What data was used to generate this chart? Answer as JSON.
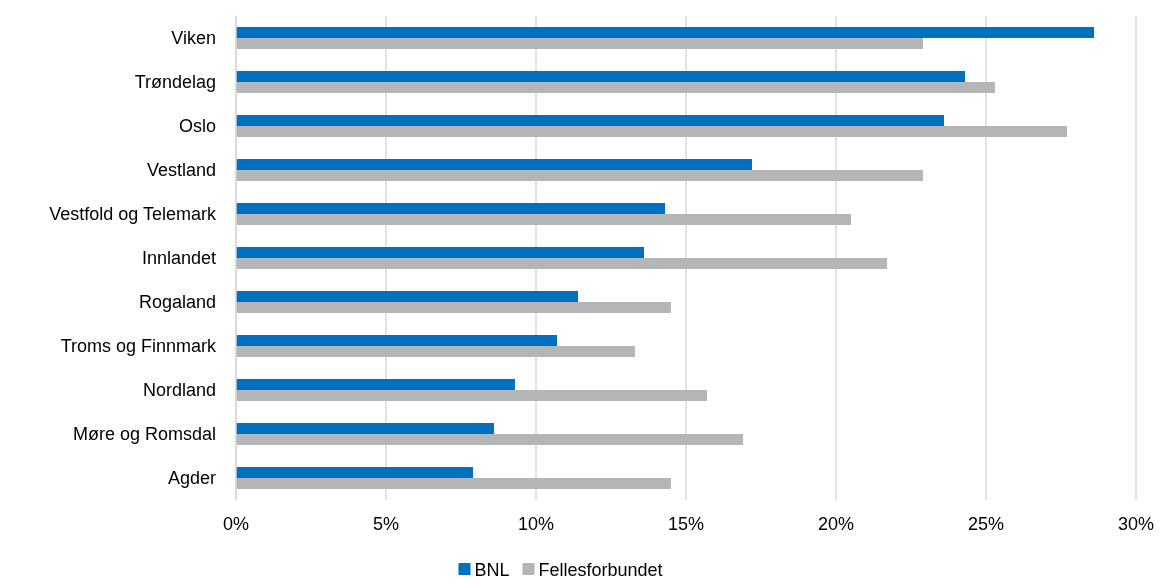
{
  "chart_data": {
    "type": "bar",
    "orientation": "horizontal",
    "categories": [
      "Viken",
      "Trøndelag",
      "Oslo",
      "Vestland",
      "Vestfold og Telemark",
      "Innlandet",
      "Rogaland",
      "Troms og Finnmark",
      "Nordland",
      "Møre og Romsdal",
      "Agder"
    ],
    "series": [
      {
        "name": "BNL",
        "color": "#0070c0",
        "values": [
          28.6,
          24.3,
          23.6,
          17.2,
          14.3,
          13.6,
          11.4,
          10.7,
          9.3,
          8.6,
          7.9
        ]
      },
      {
        "name": "Fellesforbundet",
        "color": "#b4b5b7",
        "values": [
          22.9,
          25.3,
          27.7,
          22.9,
          20.5,
          21.7,
          14.5,
          13.3,
          15.7,
          16.9,
          14.5
        ]
      }
    ],
    "xlim": [
      0,
      30
    ],
    "xticks": [
      {
        "value": 0,
        "label": "0%"
      },
      {
        "value": 5,
        "label": "5%"
      },
      {
        "value": 10,
        "label": "10%"
      },
      {
        "value": 15,
        "label": "15%"
      },
      {
        "value": 20,
        "label": "20%"
      },
      {
        "value": 25,
        "label": "25%"
      },
      {
        "value": 30,
        "label": "30%"
      }
    ],
    "grid": "x",
    "legend": "bottom"
  }
}
